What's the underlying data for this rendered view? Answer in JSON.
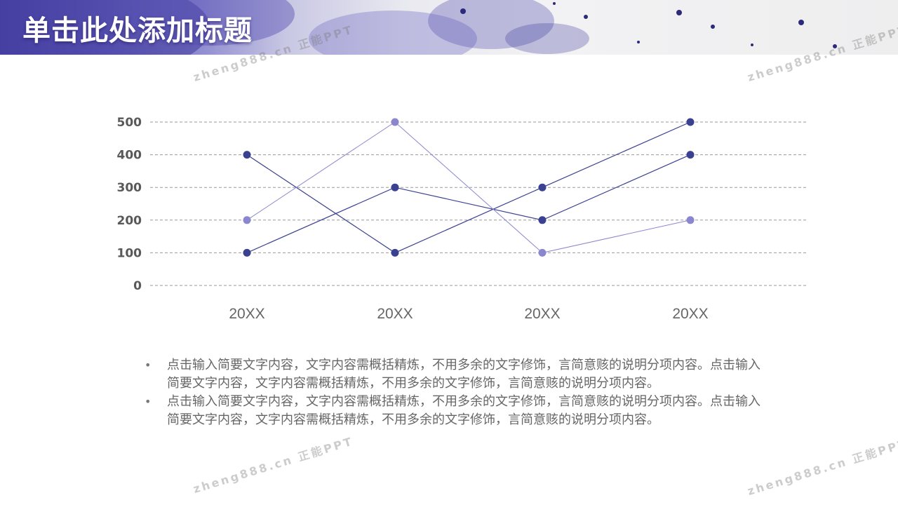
{
  "header": {
    "title": "单击此处添加标题"
  },
  "watermarks": [
    "zheng888.cn 正能PPT",
    "zheng888.cn 正能PPT",
    "zheng888.cn 正能PPT",
    "zheng888.cn 正能PPT"
  ],
  "colors": {
    "banner_accent": "#4c46a8",
    "series_dark": "#3a4191",
    "series_light": "#8b87cf",
    "grid": "#9a9a9a",
    "tick_text": "#595959",
    "body_text": "#666666"
  },
  "chart_data": {
    "type": "line",
    "categories": [
      "20XX",
      "20XX",
      "20XX",
      "20XX"
    ],
    "series": [
      {
        "values": [
          400,
          100,
          300,
          500
        ],
        "color": "#3a4191"
      },
      {
        "values": [
          100,
          300,
          200,
          400
        ],
        "color": "#3a4191"
      },
      {
        "values": [
          200,
          500,
          100,
          200
        ],
        "color": "#8b87cf"
      }
    ],
    "y_ticks": [
      "0",
      "100",
      "200",
      "300",
      "400",
      "500"
    ],
    "ylim": [
      0,
      500
    ],
    "grid": true,
    "grid_style": "dashed",
    "legend": "none"
  },
  "bullets": [
    "点击输入简要文字内容，文字内容需概括精炼，不用多余的文字修饰，言简意赅的说明分项内容。点击输入简要文字内容，文字内容需概括精炼，不用多余的文字修饰，言简意赅的说明分项内容。",
    "点击输入简要文字内容，文字内容需概括精炼，不用多余的文字修饰，言简意赅的说明分项内容。点击输入简要文字内容，文字内容需概括精炼，不用多余的文字修饰，言简意赅的说明分项内容。"
  ]
}
